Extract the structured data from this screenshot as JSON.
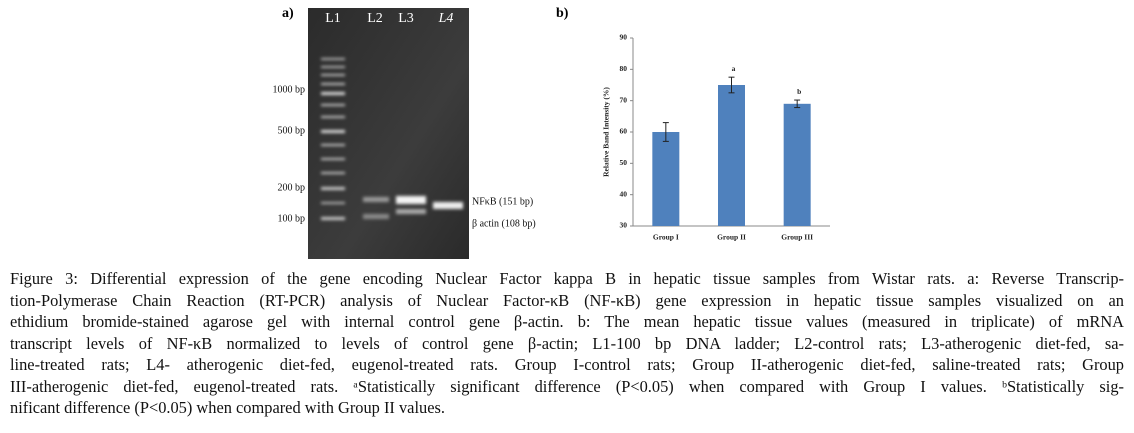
{
  "panel_a": {
    "label": "a)",
    "lanes": [
      "L1",
      "L2",
      "L3",
      "L4"
    ],
    "markers": [
      "1000 bp",
      "500 bp",
      "200 bp",
      "100 bp"
    ],
    "bands": [
      "NFκB (151 bp)",
      "β actin (108 bp)"
    ]
  },
  "chart_data": {
    "type": "bar",
    "label": "b)",
    "y_label": "Relative Band Intensity (%)",
    "categories": [
      "Group I",
      "Group II",
      "Group III"
    ],
    "values": [
      60,
      75,
      69
    ],
    "errors": [
      3,
      2.5,
      1.2
    ],
    "color": "#4f81bd",
    "ylim": [
      30,
      90
    ],
    "yticks": [
      30,
      40,
      50,
      60,
      70,
      80,
      90
    ],
    "annotations": [
      {
        "text": "a",
        "category": 1
      },
      {
        "text": "b",
        "category": 2
      }
    ]
  },
  "caption": [
    "Figure 3: Differential expression of the gene encoding Nuclear Factor kappa B in hepatic tissue samples from Wistar rats. a: Reverse Transcrip-",
    "tion-Polymerase Chain Reaction (RT-PCR) analysis of Nuclear Factor-κB (NF-κB) gene expression in hepatic tissue samples visualized on an",
    "ethidium bromide-stained agarose gel with internal control gene β-actin. b: The mean hepatic tissue values (measured in triplicate) of mRNA",
    "transcript levels of NF-κB normalized to levels of control gene β-actin; L1-100 bp DNA ladder; L2-control rats; L3-atherogenic diet-fed, sa-",
    "line-treated rats; L4- atherogenic diet-fed, eugenol-treated rats. Group I-control rats; Group II-atherogenic diet-fed, saline-treated rats; Group",
    "III-atherogenic diet-fed, eugenol-treated rats. ᵃStatistically significant difference (P<0.05) when compared with Group I values. ᵇStatistically sig-",
    "nificant difference (P<0.05) when compared with Group II values."
  ]
}
